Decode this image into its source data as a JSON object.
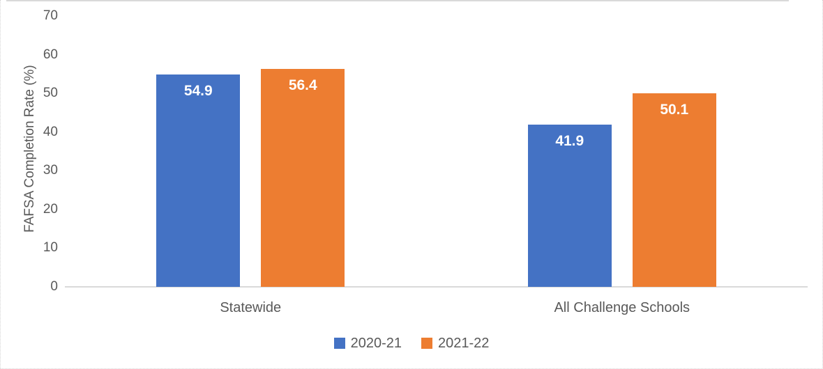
{
  "chart_data": {
    "type": "bar",
    "title": "",
    "categories": [
      "Statewide",
      "All Challenge Schools"
    ],
    "series": [
      {
        "name": "2020-21",
        "color": "#4472C4",
        "values": [
          54.9,
          41.9
        ]
      },
      {
        "name": "2021-22",
        "color": "#ED7D31",
        "values": [
          56.4,
          50.1
        ]
      }
    ],
    "ylabel": "FAFSA Completion Rate (%)",
    "ylim": [
      0,
      70
    ],
    "yticks": [
      0,
      10,
      20,
      30,
      40,
      50,
      60,
      70
    ],
    "grid": false,
    "legend_position": "bottom",
    "data_labels": true,
    "data_label_decimals": 1
  },
  "colors": {
    "axis_line": "#d9d9d9",
    "text": "#595959",
    "data_label_text": "#ffffff",
    "background": "#ffffff"
  }
}
